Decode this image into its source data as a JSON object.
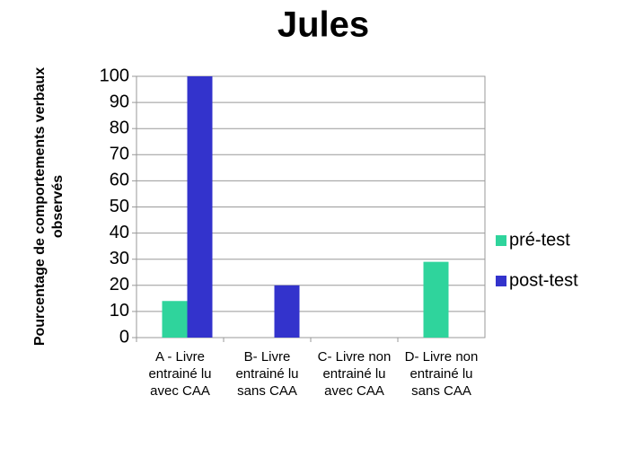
{
  "chart_data": {
    "type": "bar",
    "title": "Jules",
    "y_label": "Pourcentage de comportements verbaux observés",
    "categories": [
      "A - Livre entrainé lu avec CAA",
      "B- Livre entrainé lu sans CAA",
      "C- Livre non entrainé lu avec CAA",
      "D- Livre non entrainé lu sans CAA"
    ],
    "series": [
      {
        "name": "pré-test",
        "color": "#2fd49c",
        "values": [
          14,
          0,
          0,
          29
        ]
      },
      {
        "name": "post-test",
        "color": "#3333cc",
        "values": [
          100,
          20,
          0,
          0
        ]
      }
    ],
    "ylim": [
      0,
      100
    ],
    "yticks": [
      0,
      10,
      20,
      30,
      40,
      50,
      60,
      70,
      80,
      90,
      100
    ],
    "grid": true,
    "legend": "right"
  }
}
